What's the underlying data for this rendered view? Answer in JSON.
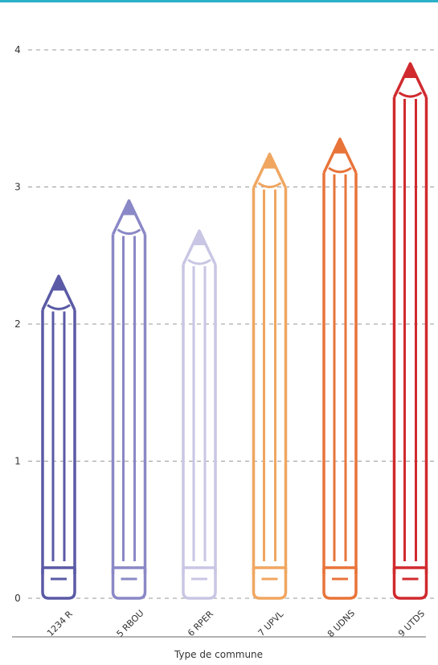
{
  "chart_data": {
    "type": "bar",
    "style": "pencil",
    "categories": [
      "1234 R",
      "5 RBOU",
      "6 RPER",
      "7 UPVL",
      "8 UDNS",
      "9 UTDS"
    ],
    "values": [
      2.35,
      2.9,
      2.68,
      3.24,
      3.35,
      3.9
    ],
    "colors": [
      "#5a5aa6",
      "#8a88c6",
      "#c8c6e4",
      "#f0a660",
      "#e8743a",
      "#d02a2e"
    ],
    "title": "",
    "xlabel": "Type de commune",
    "ylabel": "",
    "ylim": [
      0,
      4
    ],
    "yticks": [
      0,
      1,
      2,
      3,
      4
    ],
    "grid": true,
    "gridline_color": "#999999",
    "accent_color": "#2ab0c8"
  }
}
